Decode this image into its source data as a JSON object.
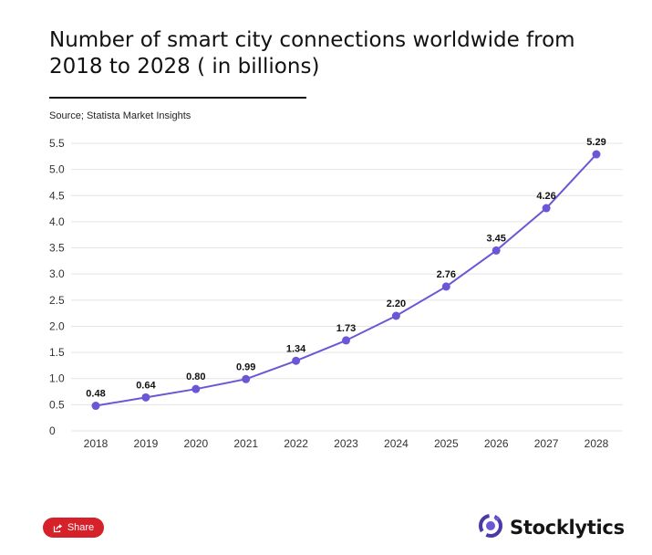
{
  "title": "Number of smart city connections worldwide from 2018 to 2028 ( in billions)",
  "source": "Source; Statista Market Insights",
  "share_label": "Share",
  "brand": {
    "name": "Stocklytics",
    "logo_icon": "stocklytics-logo-icon"
  },
  "colors": {
    "line": "#6b56d6",
    "grid": "#e4e4e4",
    "share": "#d6202a"
  },
  "chart_data": {
    "type": "line",
    "title": "Number of smart city connections worldwide from 2018 to 2028 ( in billions)",
    "xlabel": "",
    "ylabel": "",
    "categories": [
      "2018",
      "2019",
      "2020",
      "2021",
      "2022",
      "2023",
      "2024",
      "2025",
      "2026",
      "2027",
      "2028"
    ],
    "values": [
      0.48,
      0.64,
      0.8,
      0.99,
      1.34,
      1.73,
      2.2,
      2.76,
      3.45,
      4.26,
      5.29
    ],
    "data_labels": [
      "0.48",
      "0.64",
      "0.80",
      "0.99",
      "1.34",
      "1.73",
      "2.20",
      "2.76",
      "3.45",
      "4.26",
      "5.29"
    ],
    "y_ticks": [
      "0",
      "0.5",
      "1.0",
      "1.5",
      "2.0",
      "2.5",
      "3.0",
      "3.5",
      "4.0",
      "4.5",
      "5.0",
      "5.5"
    ],
    "ylim": [
      0,
      5.5
    ],
    "grid": true,
    "legend": "none"
  }
}
